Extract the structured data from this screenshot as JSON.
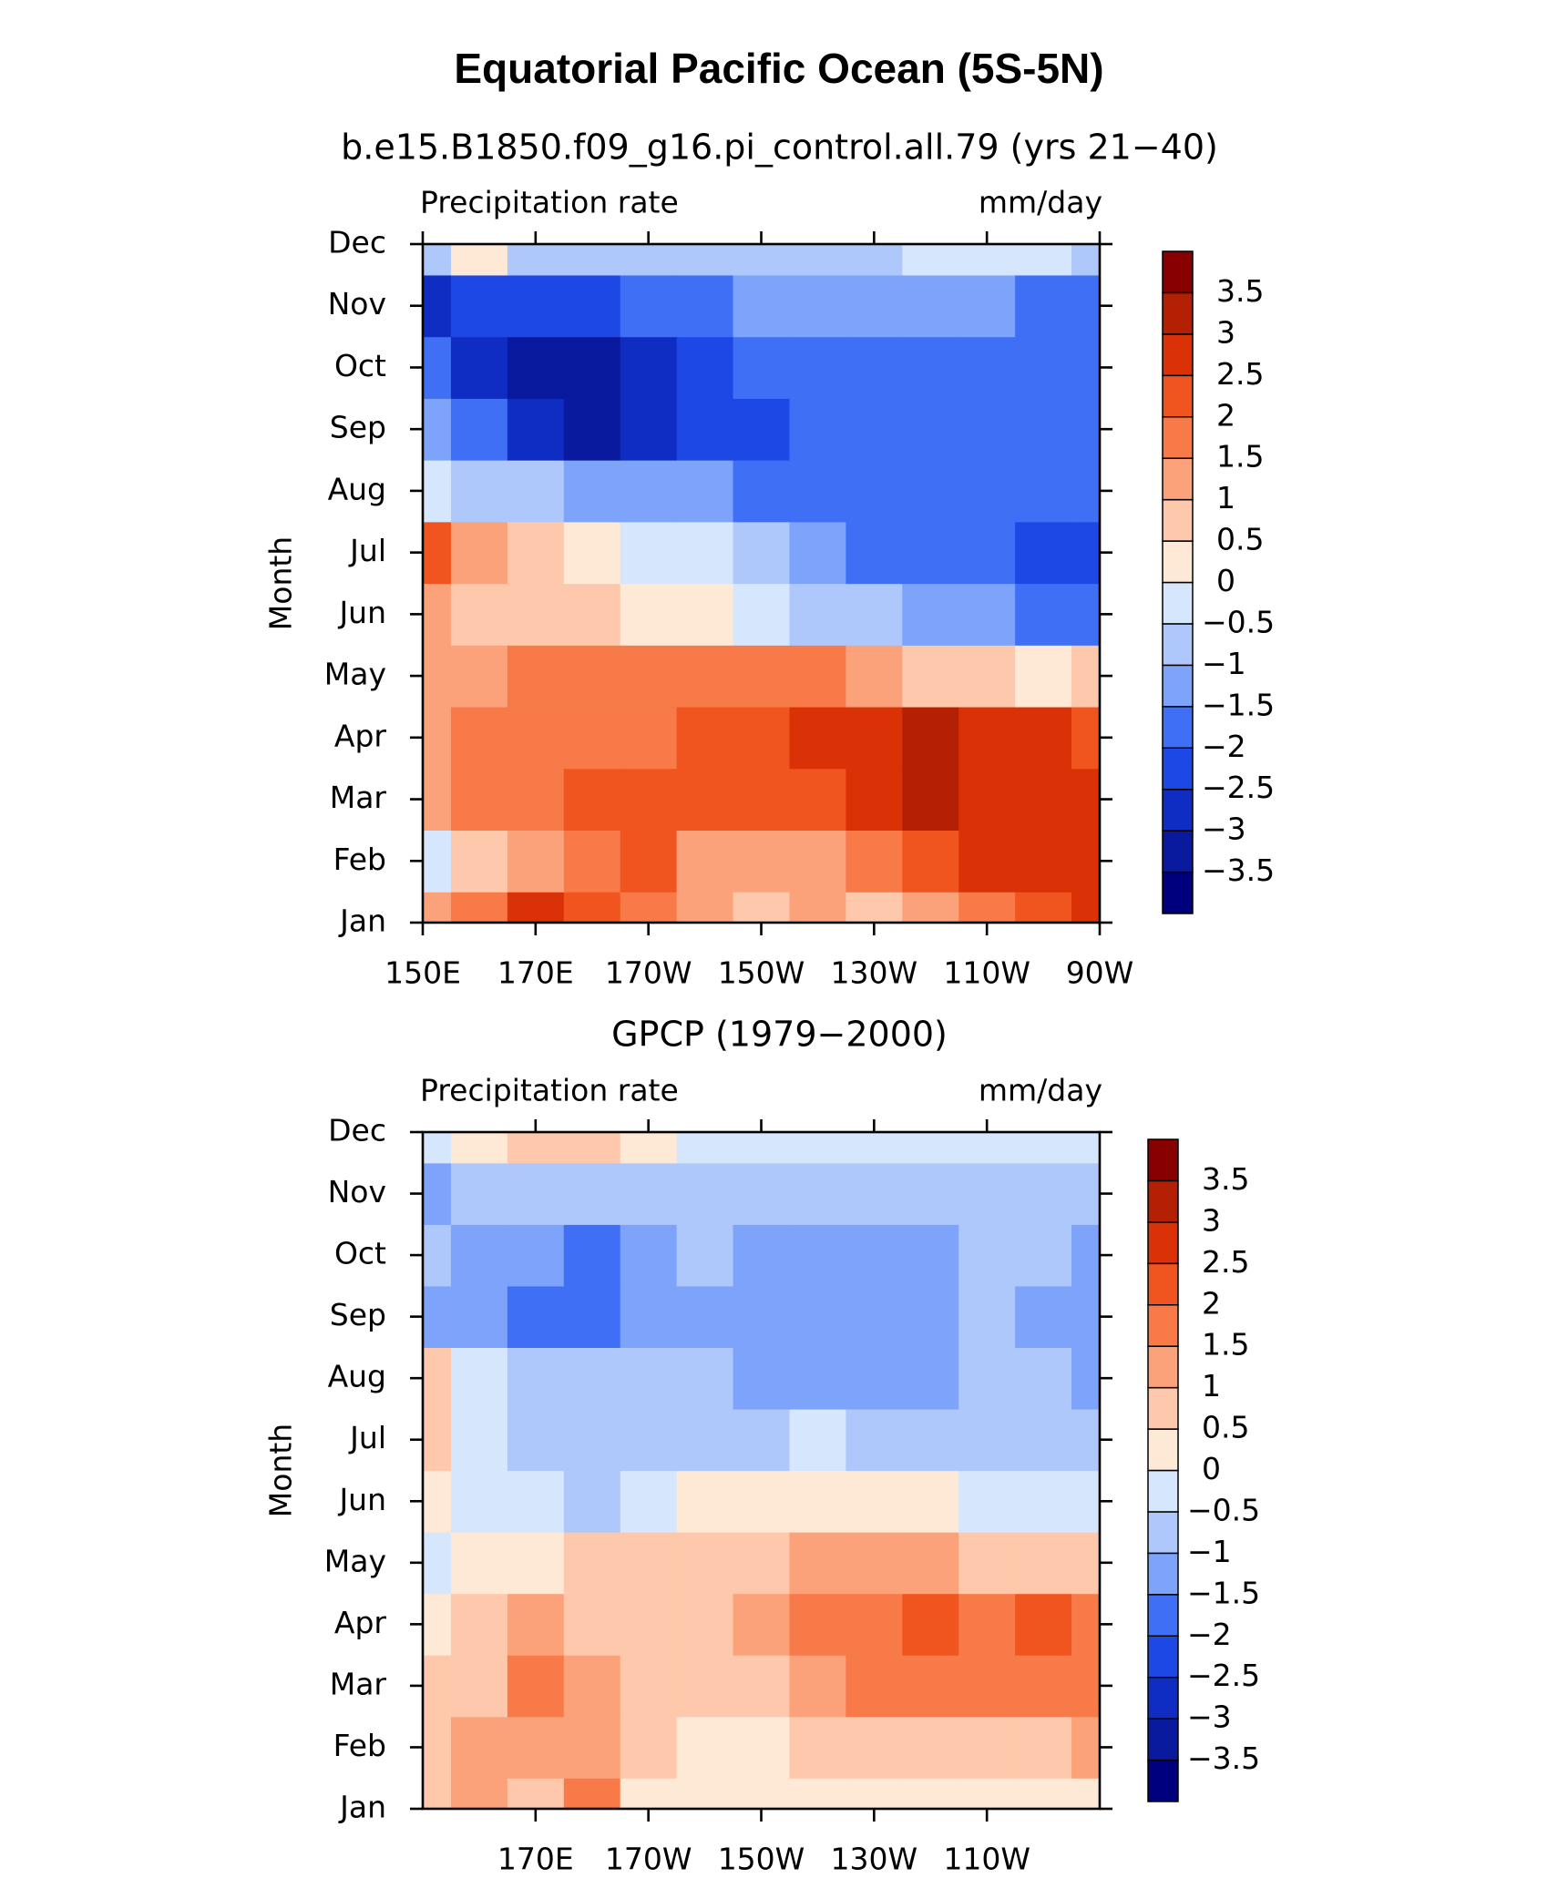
{
  "title": "Equatorial Pacific Ocean (5S-5N)",
  "chart_data": [
    {
      "type": "contour",
      "title": "b.e15.B1850.f09_g16.pi_control.all.79 (yrs 21−40)",
      "left_string": "Precipitation rate",
      "right_string": "mm/day",
      "ylabel": "Month",
      "x": [
        150,
        160,
        170,
        180,
        190,
        200,
        210,
        220,
        230,
        240,
        250,
        260,
        270
      ],
      "xlim": [
        150,
        270
      ],
      "xticks": [
        {
          "value": 150,
          "label": "150E"
        },
        {
          "value": 170,
          "label": "170E"
        },
        {
          "value": 190,
          "label": "170W"
        },
        {
          "value": 210,
          "label": "150W"
        },
        {
          "value": 230,
          "label": "130W"
        },
        {
          "value": 250,
          "label": "110W"
        },
        {
          "value": 270,
          "label": "90W"
        }
      ],
      "categories": [
        "Jan",
        "Feb",
        "Mar",
        "Apr",
        "May",
        "Jun",
        "Jul",
        "Aug",
        "Sep",
        "Oct",
        "Nov",
        "Dec"
      ],
      "values": [
        [
          1.0,
          1.5,
          2.8,
          2.0,
          1.5,
          1.2,
          0.8,
          1.0,
          0.8,
          1.2,
          1.7,
          2.2,
          2.5
        ],
        [
          -0.3,
          0.5,
          1.3,
          1.8,
          2.0,
          1.3,
          1.2,
          1.4,
          1.8,
          2.3,
          2.6,
          2.8,
          2.8
        ],
        [
          1.2,
          1.8,
          1.7,
          2.0,
          2.3,
          2.0,
          2.1,
          2.3,
          2.7,
          3.0,
          2.8,
          2.9,
          2.8
        ],
        [
          1.3,
          1.6,
          1.7,
          1.8,
          1.8,
          2.1,
          2.3,
          2.5,
          2.7,
          3.1,
          2.8,
          2.6,
          2.3
        ],
        [
          1.0,
          1.4,
          1.6,
          1.8,
          1.9,
          1.9,
          1.7,
          1.5,
          1.2,
          0.9,
          0.5,
          0.3,
          0.5
        ],
        [
          1.2,
          0.9,
          0.8,
          0.6,
          0.4,
          0.2,
          -0.2,
          -0.6,
          -0.9,
          -1.2,
          -1.4,
          -1.6,
          -1.6
        ],
        [
          2.0,
          1.2,
          0.5,
          0.2,
          -0.2,
          -0.5,
          -0.9,
          -1.3,
          -1.6,
          -1.7,
          -1.9,
          -2.1,
          -2.1
        ],
        [
          -0.3,
          -0.6,
          -0.9,
          -1.2,
          -1.3,
          -1.5,
          -1.6,
          -1.8,
          -1.9,
          -1.9,
          -1.9,
          -1.7,
          -1.9
        ],
        [
          -1.2,
          -2.0,
          -2.8,
          -3.1,
          -2.8,
          -2.3,
          -2.1,
          -2.0,
          -1.9,
          -1.9,
          -1.9,
          -1.9,
          -1.9
        ],
        [
          -2.0,
          -2.6,
          -3.2,
          -3.3,
          -2.7,
          -2.4,
          -2.0,
          -1.9,
          -1.9,
          -1.9,
          -1.9,
          -1.9,
          -1.8
        ],
        [
          -2.7,
          -2.4,
          -2.3,
          -2.1,
          -1.8,
          -1.6,
          -1.4,
          -1.3,
          -1.3,
          -1.4,
          -1.5,
          -1.7,
          -1.6
        ],
        [
          -0.6,
          0.3,
          -0.6,
          -0.8,
          -0.9,
          -0.9,
          -0.8,
          -0.7,
          -0.6,
          -0.5,
          -0.3,
          -0.4,
          -0.7
        ]
      ],
      "levels": [
        {
          "value": -3.5,
          "label": "−3.5"
        },
        {
          "value": -3,
          "label": "−3"
        },
        {
          "value": -2.5,
          "label": "−2.5"
        },
        {
          "value": -2,
          "label": "−2"
        },
        {
          "value": -1.5,
          "label": "−1.5"
        },
        {
          "value": -1,
          "label": "−1"
        },
        {
          "value": -0.5,
          "label": "−0.5"
        },
        0,
        0.5,
        1,
        1.5,
        2,
        2.5,
        3,
        3.5
      ],
      "colors": [
        "#00007f",
        "#0a1a9e",
        "#0f2dc2",
        "#1e48e6",
        "#3e6ff5",
        "#7da3fa",
        "#aec8fb",
        "#d6e6fc",
        "#fee8d6",
        "#fdc8ab",
        "#fba27b",
        "#f77a48",
        "#f0551f",
        "#da3206",
        "#b42003",
        "#880000"
      ]
    },
    {
      "type": "contour",
      "title": "GPCP (1979−2000)",
      "left_string": "Precipitation rate",
      "right_string": "mm/day",
      "ylabel": "Month",
      "x": [
        150,
        160,
        170,
        180,
        190,
        200,
        210,
        220,
        230,
        240,
        250,
        260,
        270
      ],
      "xlim": [
        150,
        270
      ],
      "xticks": [
        {
          "value": 170,
          "label": "170E"
        },
        {
          "value": 190,
          "label": "170W"
        },
        {
          "value": 210,
          "label": "150W"
        },
        {
          "value": 230,
          "label": "130W"
        },
        {
          "value": 250,
          "label": "110W"
        }
      ],
      "categories": [
        "Jan",
        "Feb",
        "Mar",
        "Apr",
        "May",
        "Jun",
        "Jul",
        "Aug",
        "Sep",
        "Oct",
        "Nov",
        "Dec"
      ],
      "values": [
        [
          0.9,
          1.2,
          0.8,
          1.5,
          0.3,
          0.2,
          0.3,
          0.3,
          0.3,
          0.2,
          0.2,
          0.3,
          0.4
        ],
        [
          0.7,
          1.2,
          1.4,
          1.3,
          0.8,
          0.3,
          0.4,
          0.5,
          0.6,
          0.7,
          0.8,
          0.9,
          1.1
        ],
        [
          0.6,
          0.8,
          1.6,
          1.2,
          0.9,
          0.5,
          0.9,
          1.3,
          1.6,
          1.8,
          1.6,
          1.7,
          1.5
        ],
        [
          0.4,
          0.6,
          1.2,
          0.9,
          0.7,
          0.8,
          1.1,
          1.6,
          1.9,
          2.0,
          1.6,
          2.0,
          1.6
        ],
        [
          -0.2,
          0.2,
          0.4,
          0.5,
          0.6,
          0.8,
          0.9,
          1.0,
          1.0,
          1.0,
          0.9,
          0.8,
          0.7
        ],
        [
          0.4,
          -0.3,
          -0.5,
          -0.7,
          -0.2,
          0.2,
          0.2,
          0.2,
          0.1,
          0.0,
          -0.1,
          -0.2,
          -0.3
        ],
        [
          0.6,
          -0.3,
          -0.7,
          -0.8,
          -0.8,
          -0.6,
          -0.6,
          -0.5,
          -0.6,
          -0.6,
          -0.7,
          -0.8,
          -0.9
        ],
        [
          0.5,
          -0.5,
          -1.0,
          -0.9,
          -0.8,
          -0.8,
          -1.1,
          -1.2,
          -1.2,
          -1.1,
          -0.8,
          -1.0,
          -1.2
        ],
        [
          -1.2,
          -1.1,
          -1.7,
          -1.7,
          -1.2,
          -1.1,
          -1.3,
          -1.3,
          -1.2,
          -1.3,
          -0.9,
          -1.1,
          -1.3
        ],
        [
          -1.0,
          -1.2,
          -1.3,
          -1.6,
          -1.1,
          -0.9,
          -1.1,
          -1.2,
          -1.2,
          -1.1,
          -0.8,
          -0.9,
          -1.1
        ],
        [
          -1.1,
          -0.8,
          -0.6,
          -0.6,
          -0.7,
          -0.6,
          -0.7,
          -0.6,
          -0.6,
          -0.7,
          -0.7,
          -0.8,
          -0.7
        ],
        [
          -0.2,
          0.3,
          0.8,
          0.5,
          0.2,
          -0.2,
          -0.4,
          -0.4,
          -0.3,
          -0.4,
          -0.5,
          -0.4,
          -0.3
        ]
      ],
      "levels": [
        {
          "value": -3.5,
          "label": "−3.5"
        },
        {
          "value": -3,
          "label": "−3"
        },
        {
          "value": -2.5,
          "label": "−2.5"
        },
        {
          "value": -2,
          "label": "−2"
        },
        {
          "value": -1.5,
          "label": "−1.5"
        },
        {
          "value": -1,
          "label": "−1"
        },
        {
          "value": -0.5,
          "label": "−0.5"
        },
        0,
        0.5,
        1,
        1.5,
        2,
        2.5,
        3,
        3.5
      ],
      "colors": [
        "#00007f",
        "#0a1a9e",
        "#0f2dc2",
        "#1e48e6",
        "#3e6ff5",
        "#7da3fa",
        "#aec8fb",
        "#d6e6fc",
        "#fee8d6",
        "#fdc8ab",
        "#fba27b",
        "#f77a48",
        "#f0551f",
        "#da3206",
        "#b42003",
        "#880000"
      ]
    }
  ]
}
